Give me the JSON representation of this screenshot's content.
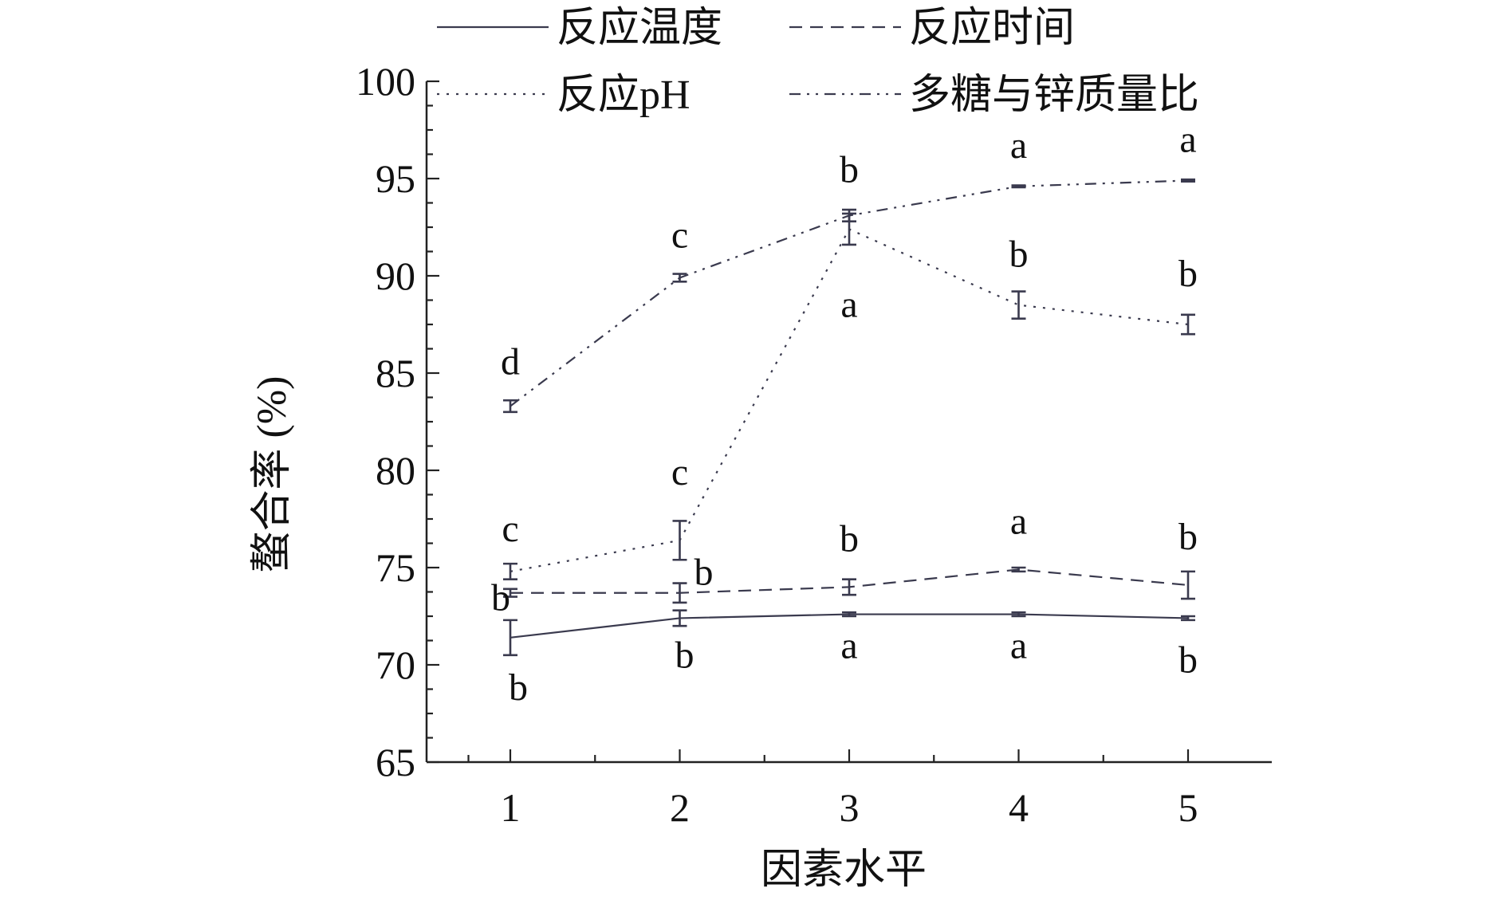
{
  "chart_data": {
    "type": "line",
    "title": "",
    "xlabel": "因素水平",
    "ylabel": "螯合率 (%)",
    "x": [
      1,
      2,
      3,
      4,
      5
    ],
    "xticks": [
      "1",
      "2",
      "3",
      "4",
      "5"
    ],
    "ylim": [
      65,
      100
    ],
    "yticks": [
      "65",
      "70",
      "75",
      "80",
      "85",
      "90",
      "95",
      "100"
    ],
    "grid": false,
    "legend_position": "top",
    "series": [
      {
        "name": "反应温度",
        "dash": "solid",
        "color": "#3a3a4e",
        "values": [
          71.4,
          72.4,
          72.6,
          72.6,
          72.4
        ],
        "errors": [
          0.9,
          0.4,
          0.1,
          0.1,
          0.1
        ],
        "labels": [
          "b",
          "b",
          "a",
          "a",
          "b"
        ]
      },
      {
        "name": "反应时间",
        "dash": "dashed",
        "color": "#3a3a4e",
        "values": [
          73.7,
          73.7,
          74.0,
          74.9,
          74.1
        ],
        "errors": [
          0.2,
          0.5,
          0.4,
          0.1,
          0.7
        ],
        "labels": [
          "b",
          "b",
          "b",
          "a",
          "b"
        ]
      },
      {
        "name": "反应pH",
        "dash": "dotted",
        "color": "#3a3a4e",
        "values": [
          74.8,
          76.4,
          92.4,
          88.5,
          87.5
        ],
        "errors": [
          0.4,
          1.0,
          0.8,
          0.7,
          0.5
        ],
        "labels": [
          "c",
          "c",
          "a",
          "b",
          "b"
        ]
      },
      {
        "name": "多糖与锌质量比",
        "dash": "dashdotdot",
        "color": "#3a3a4e",
        "values": [
          83.3,
          89.9,
          93.1,
          94.6,
          94.9
        ],
        "errors": [
          0.3,
          0.2,
          0.3,
          0.05,
          0.05
        ],
        "labels": [
          "d",
          "c",
          "b",
          "a",
          "a"
        ]
      }
    ]
  }
}
